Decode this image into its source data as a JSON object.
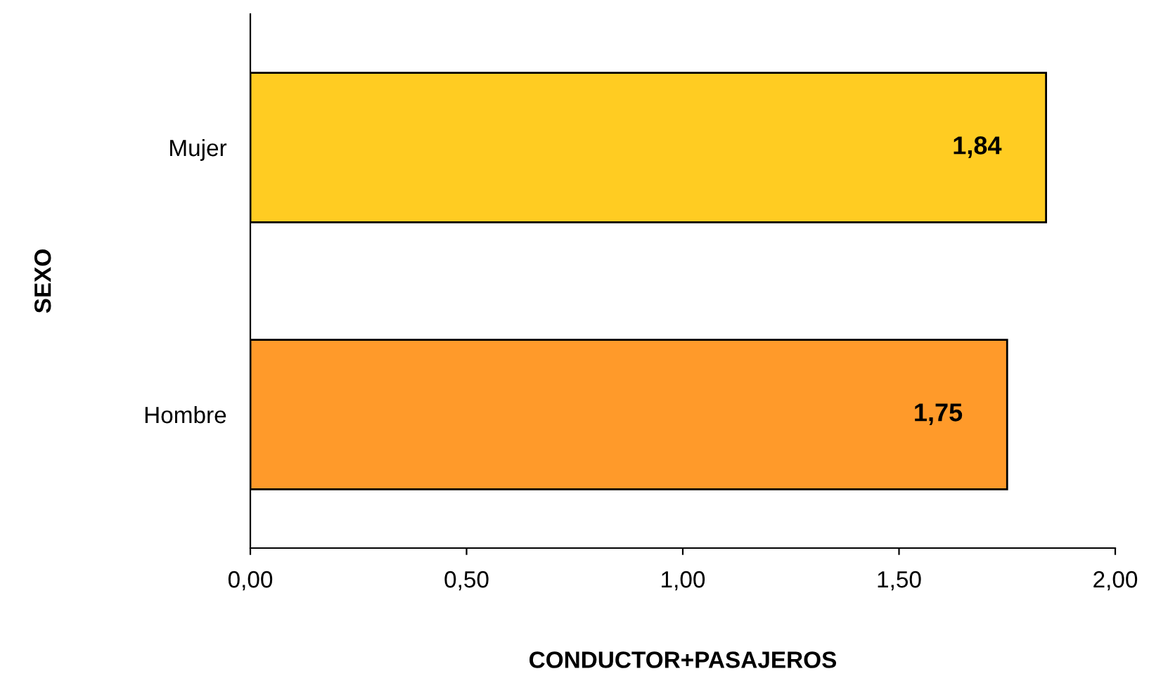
{
  "chart_data": {
    "type": "bar",
    "orientation": "horizontal",
    "categories": [
      "Mujer",
      "Hombre"
    ],
    "values": [
      1.84,
      1.75
    ],
    "colors": [
      "#ffcc22",
      "#ff9a2a"
    ],
    "value_labels": [
      "1,84",
      "1,75"
    ],
    "xlabel": "CONDUCTOR+PASAJEROS",
    "ylabel": "SEXO",
    "xlim": [
      0,
      2
    ],
    "xticks": [
      {
        "value": 0,
        "label": "0,00"
      },
      {
        "value": 0.5,
        "label": "0,50"
      },
      {
        "value": 1,
        "label": "1,00"
      },
      {
        "value": 1.5,
        "label": "1,50"
      },
      {
        "value": 2,
        "label": "2,00"
      }
    ],
    "grid": false,
    "legend": false
  }
}
